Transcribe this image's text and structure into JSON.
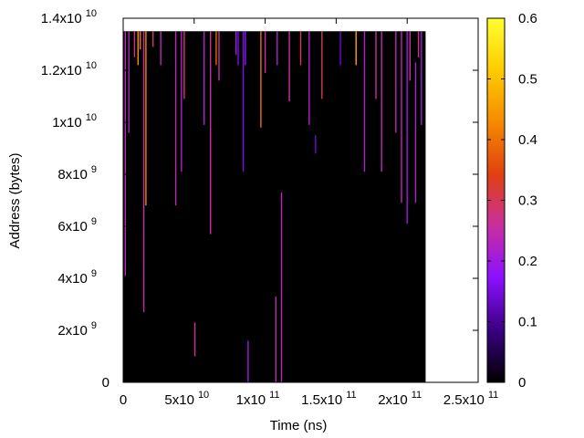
{
  "chart_data": {
    "type": "heatmap",
    "title": "",
    "xlabel": "Time (ns)",
    "ylabel": "Address (bytes)",
    "xlim": [
      0,
      250000000000.0
    ],
    "ylim": [
      0,
      14000000000.0
    ],
    "x_ticks": [
      {
        "value": 0,
        "base": "0",
        "exp": ""
      },
      {
        "value": 50000000000.0,
        "base": "5x10",
        "exp": "10"
      },
      {
        "value": 100000000000.0,
        "base": "1x10",
        "exp": "11"
      },
      {
        "value": 150000000000.0,
        "base": "1.5x10",
        "exp": "11"
      },
      {
        "value": 200000000000.0,
        "base": "2x10",
        "exp": "11"
      },
      {
        "value": 250000000000.0,
        "base": "2.5x10",
        "exp": "11"
      }
    ],
    "y_ticks": [
      {
        "value": 0,
        "base": "0",
        "exp": ""
      },
      {
        "value": 2000000000.0,
        "base": "2x10",
        "exp": "9"
      },
      {
        "value": 4000000000.0,
        "base": "4x10",
        "exp": "9"
      },
      {
        "value": 6000000000.0,
        "base": "6x10",
        "exp": "9"
      },
      {
        "value": 8000000000.0,
        "base": "8x10",
        "exp": "9"
      },
      {
        "value": 10000000000.0,
        "base": "1x10",
        "exp": "10"
      },
      {
        "value": 12000000000.0,
        "base": "1.2x10",
        "exp": "10"
      },
      {
        "value": 14000000000.0,
        "base": "1.4x10",
        "exp": "10"
      }
    ],
    "colorbar": {
      "range": [
        0,
        0.6
      ],
      "ticks": [
        "0",
        "0.1",
        "0.2",
        "0.3",
        "0.4",
        "0.5",
        "0.6"
      ],
      "palette": [
        "#000000",
        "#3a0080",
        "#8a10ff",
        "#c82fa0",
        "#e04010",
        "#f58a00",
        "#ffcc00",
        "#ffff30"
      ]
    },
    "data_region": {
      "x": [
        0,
        213000000000.0
      ],
      "y": [
        0,
        13500000000.0
      ],
      "background_value": 0
    },
    "stripes": [
      {
        "x": 1500000000.0,
        "y0": 4100000000.0,
        "y1": 13500000000.0,
        "value": 0.24
      },
      {
        "x": 4000000000.0,
        "y0": 9600000000.0,
        "y1": 13500000000.0,
        "value": 0.22
      },
      {
        "x": 8000000000.0,
        "y0": 12500000000.0,
        "y1": 13500000000.0,
        "value": 0.28
      },
      {
        "x": 10500000000.0,
        "y0": 12200000000.0,
        "y1": 13500000000.0,
        "value": 0.44
      },
      {
        "x": 12000000000.0,
        "y0": 12800000000.0,
        "y1": 13500000000.0,
        "value": 0.4
      },
      {
        "x": 14500000000.0,
        "y0": 2700000000.0,
        "y1": 13500000000.0,
        "value": 0.25
      },
      {
        "x": 16000000000.0,
        "y0": 6800000000.0,
        "y1": 13500000000.0,
        "value": 0.42
      },
      {
        "x": 21000000000.0,
        "y0": 12900000000.0,
        "y1": 13500000000.0,
        "value": 0.3
      },
      {
        "x": 26500000000.0,
        "y0": 12200000000.0,
        "y1": 13500000000.0,
        "value": 0.24
      },
      {
        "x": 37000000000.0,
        "y0": 6800000000.0,
        "y1": 13500000000.0,
        "value": 0.24
      },
      {
        "x": 41000000000.0,
        "y0": 8100000000.0,
        "y1": 13500000000.0,
        "value": 0.22
      },
      {
        "x": 43000000000.0,
        "y0": 10900000000.0,
        "y1": 13500000000.0,
        "value": 0.28
      },
      {
        "x": 50500000000.0,
        "y0": 1000000000.0,
        "y1": 2300000000.0,
        "value": 0.26
      },
      {
        "x": 57000000000.0,
        "y0": 9900000000.0,
        "y1": 13500000000.0,
        "value": 0.22
      },
      {
        "x": 61500000000.0,
        "y0": 5700000000.0,
        "y1": 13500000000.0,
        "value": 0.26
      },
      {
        "x": 65500000000.0,
        "y0": 12200000000.0,
        "y1": 13500000000.0,
        "value": 0.38
      },
      {
        "x": 67500000000.0,
        "y0": 11600000000.0,
        "y1": 13500000000.0,
        "value": 0.26
      },
      {
        "x": 79500000000.0,
        "y0": 12600000000.0,
        "y1": 13500000000.0,
        "value": 0.2
      },
      {
        "x": 81000000000.0,
        "y0": 12200000000.0,
        "y1": 13500000000.0,
        "value": 0.16
      },
      {
        "x": 84500000000.0,
        "y0": 8100000000.0,
        "y1": 13500000000.0,
        "value": 0.16
      },
      {
        "x": 86000000000.0,
        "y0": 12200000000.0,
        "y1": 13500000000.0,
        "value": 0.18
      },
      {
        "x": 88000000000.0,
        "y0": 0,
        "y1": 1600000000.0,
        "value": 0.2
      },
      {
        "x": 97000000000.0,
        "y0": 9800000000.0,
        "y1": 13500000000.0,
        "value": 0.4
      },
      {
        "x": 100000000000.0,
        "y0": 11900000000.0,
        "y1": 13500000000.0,
        "value": 0.26
      },
      {
        "x": 107500000000.0,
        "y0": 0,
        "y1": 3300000000.0,
        "value": 0.24
      },
      {
        "x": 108500000000.0,
        "y0": 12200000000.0,
        "y1": 13500000000.0,
        "value": 0.22
      },
      {
        "x": 111500000000.0,
        "y0": 0,
        "y1": 7300000000.0,
        "value": 0.24
      },
      {
        "x": 117000000000.0,
        "y0": 10800000000.0,
        "y1": 13500000000.0,
        "value": 0.26
      },
      {
        "x": 125000000000.0,
        "y0": 12200000000.0,
        "y1": 13500000000.0,
        "value": 0.3
      },
      {
        "x": 131000000000.0,
        "y0": 9900000000.0,
        "y1": 13500000000.0,
        "value": 0.22
      },
      {
        "x": 135500000000.0,
        "y0": 8800000000.0,
        "y1": 9500000000.0,
        "value": 0.14
      },
      {
        "x": 140000000000.0,
        "y0": 10900000000.0,
        "y1": 13500000000.0,
        "value": 0.3
      },
      {
        "x": 153000000000.0,
        "y0": 12200000000.0,
        "y1": 13500000000.0,
        "value": 0.14
      },
      {
        "x": 164000000000.0,
        "y0": 12200000000.0,
        "y1": 13500000000.0,
        "value": 0.46
      },
      {
        "x": 170000000000.0,
        "y0": 8100000000.0,
        "y1": 13500000000.0,
        "value": 0.22
      },
      {
        "x": 178000000000.0,
        "y0": 10900000000.0,
        "y1": 13500000000.0,
        "value": 0.26
      },
      {
        "x": 182000000000.0,
        "y0": 8100000000.0,
        "y1": 13500000000.0,
        "value": 0.24
      },
      {
        "x": 192000000000.0,
        "y0": 9600000000.0,
        "y1": 13500000000.0,
        "value": 0.24
      },
      {
        "x": 196000000000.0,
        "y0": 6900000000.0,
        "y1": 13500000000.0,
        "value": 0.24
      },
      {
        "x": 200000000000.0,
        "y0": 6100000000.0,
        "y1": 13500000000.0,
        "value": 0.2
      },
      {
        "x": 202000000000.0,
        "y0": 11600000000.0,
        "y1": 13500000000.0,
        "value": 0.26
      },
      {
        "x": 206000000000.0,
        "y0": 6900000000.0,
        "y1": 12300000000.0,
        "value": 0.22
      },
      {
        "x": 208000000000.0,
        "y0": 12500000000.0,
        "y1": 13500000000.0,
        "value": 0.28
      },
      {
        "x": 210000000000.0,
        "y0": 9900000000.0,
        "y1": 13500000000.0,
        "value": 0.2
      }
    ]
  }
}
